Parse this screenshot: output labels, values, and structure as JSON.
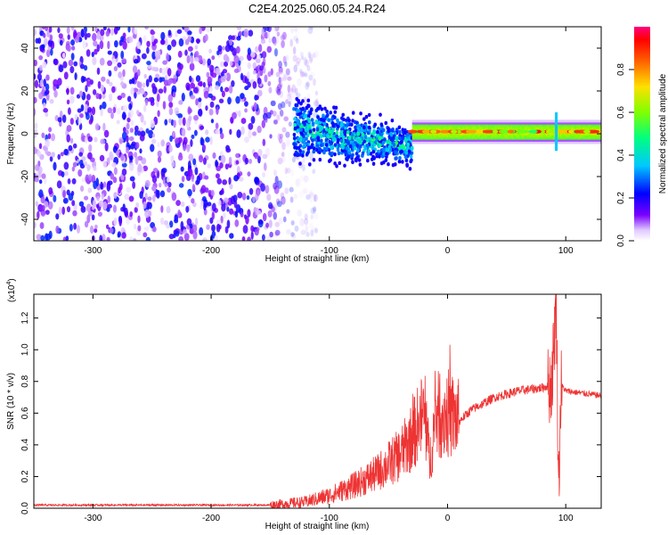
{
  "page_title": "C2E4.2025.060.05.24.R24",
  "chart_data": [
    {
      "type": "heatmap",
      "xlabel": "Height of straight line (km)",
      "ylabel": "Frequency (Hz)",
      "xlim": [
        -350,
        130
      ],
      "ylim": [
        -50,
        50
      ],
      "xticks": [
        -300,
        -200,
        -100,
        0,
        100
      ],
      "yticks": [
        -40,
        -20,
        0,
        20,
        40
      ],
      "colorbar": {
        "label": "Normalized spectral amplitude",
        "range": [
          0,
          1
        ],
        "ticks": [
          0.0,
          0.2,
          0.4,
          0.6,
          0.8
        ],
        "tick_labels": [
          "0.0",
          "0.2",
          "0.4",
          "0.6",
          "0.8"
        ],
        "stops": [
          "#ffffff",
          "#e0c8ff",
          "#7a00ff",
          "#0000ff",
          "#00c8ff",
          "#00ff80",
          "#80ff00",
          "#ffe000",
          "#ff6000",
          "#ff0000",
          "#ff0080"
        ]
      },
      "grid": false,
      "features": [
        {
          "region": "noise",
          "x_range": [
            -350,
            -130
          ],
          "freq_range": [
            -50,
            50
          ],
          "amplitude": [
            0.05,
            0.25
          ]
        },
        {
          "region": "transition",
          "x_range": [
            -130,
            -30
          ],
          "freq_center_start": 2,
          "freq_center_end": -6,
          "amplitude": [
            0.2,
            0.5
          ]
        },
        {
          "region": "carrier",
          "x_range": [
            -30,
            130
          ],
          "freq_center": 1,
          "amplitude": [
            0.5,
            0.95
          ]
        },
        {
          "region": "spike",
          "x": 92,
          "freq_range": [
            -8,
            10
          ],
          "amplitude": 0.35
        }
      ]
    },
    {
      "type": "line",
      "xlabel": "Height of straight line (km)",
      "ylabel": "SNR (10 * v/v)",
      "y_multiplier": "(x10",
      "y_multiplier_exp": "4",
      "y_multiplier_close": ")",
      "xlim": [
        -350,
        130
      ],
      "ylim": [
        0,
        1.35
      ],
      "xticks": [
        -300,
        -200,
        -100,
        0,
        100
      ],
      "yticks": [
        0.0,
        0.2,
        0.4,
        0.6,
        0.8,
        1.0,
        1.2
      ],
      "color": "#ee3333",
      "grid": false,
      "series": [
        {
          "envelope_x": [
            -350,
            -200,
            -150,
            -120,
            -100,
            -80,
            -60,
            -40,
            -30,
            -20,
            -15,
            -10,
            0,
            10,
            20,
            40,
            60,
            80,
            88,
            92,
            94,
            96,
            100,
            130
          ],
          "envelope_y": [
            0.02,
            0.02,
            0.02,
            0.04,
            0.08,
            0.14,
            0.22,
            0.34,
            0.45,
            0.6,
            0.3,
            0.58,
            0.6,
            0.55,
            0.62,
            0.7,
            0.74,
            0.76,
            0.78,
            1.3,
            0.1,
            0.78,
            0.74,
            0.71
          ]
        }
      ]
    }
  ]
}
